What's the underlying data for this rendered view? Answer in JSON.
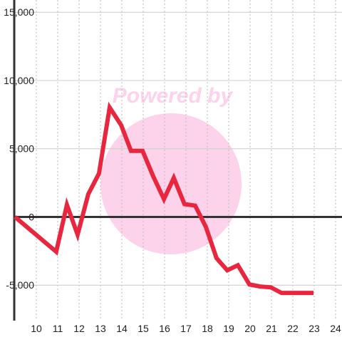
{
  "chart_data": {
    "type": "line",
    "annotation": "Powered by",
    "x": [
      9,
      10.93,
      11.43,
      11.93,
      12.43,
      12.93,
      13.43,
      13.97,
      14.43,
      14.97,
      15.47,
      15.97,
      16.43,
      16.93,
      17.43,
      17.93,
      18.43,
      18.93,
      19.43,
      19.97,
      20.47,
      20.97,
      21.47,
      21.97,
      22.97
    ],
    "series": [
      {
        "color": "#e8273f",
        "values": [
          0,
          -2550,
          890,
          -1300,
          1670,
          3180,
          8020,
          6720,
          4840,
          4840,
          2970,
          1300,
          2860,
          940,
          830,
          -730,
          -3020,
          -3910,
          -3540,
          -4950,
          -5100,
          -5160,
          -5570,
          -5570,
          -5570
        ]
      }
    ],
    "xlim": [
      9,
      24.3
    ],
    "xticks": [
      10,
      11,
      12,
      13,
      14,
      15,
      16,
      17,
      18,
      19,
      20,
      21,
      22,
      23,
      24
    ],
    "ylim": [
      -7600,
      15900
    ],
    "yticks": [
      {
        "value": -5000,
        "label": "-5,000"
      },
      0,
      {
        "value": 5000,
        "label": "5,000"
      },
      {
        "value": 10000,
        "label": "10,000"
      },
      {
        "value": 15000,
        "label": "15,000"
      }
    ],
    "grid": true
  }
}
